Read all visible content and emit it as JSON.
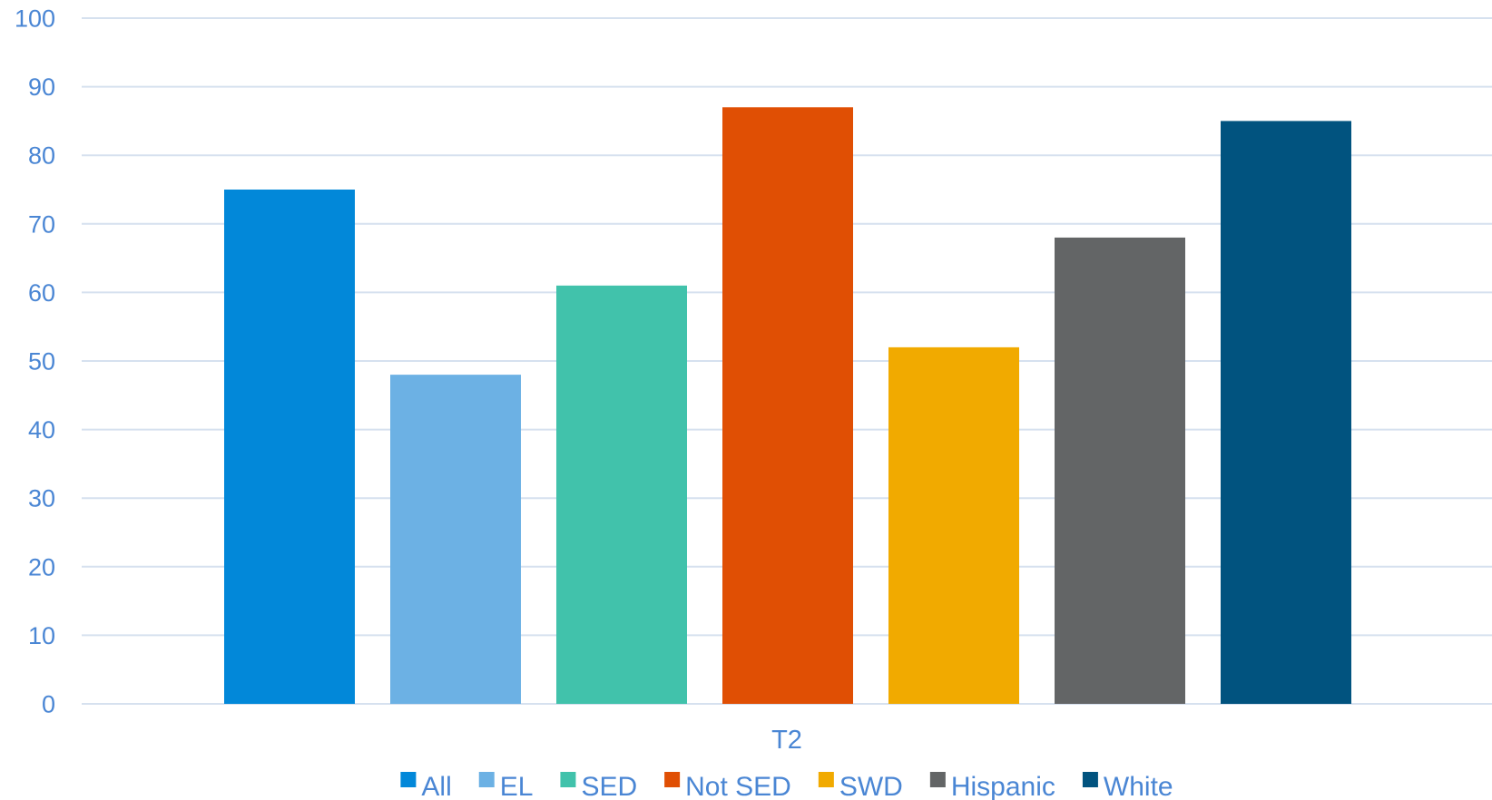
{
  "chart_data": {
    "type": "bar",
    "title": "",
    "xlabel": "",
    "ylabel": "",
    "categories": [
      "T2"
    ],
    "ylim": [
      0,
      100
    ],
    "yticks": [
      0,
      10,
      20,
      30,
      40,
      50,
      60,
      70,
      80,
      90,
      100
    ],
    "grid": true,
    "legend_position": "bottom",
    "series": [
      {
        "name": "All",
        "color": "#0288d9",
        "values": [
          75
        ]
      },
      {
        "name": "EL",
        "color": "#6cb1e4",
        "values": [
          48
        ]
      },
      {
        "name": "SED",
        "color": "#41c2ab",
        "values": [
          61
        ]
      },
      {
        "name": "Not SED",
        "color": "#e04f04",
        "values": [
          87
        ]
      },
      {
        "name": "SWD",
        "color": "#f1aa00",
        "values": [
          52
        ]
      },
      {
        "name": "Hispanic",
        "color": "#636566",
        "values": [
          68
        ]
      },
      {
        "name": "White",
        "color": "#01537f",
        "values": [
          85
        ]
      }
    ]
  }
}
